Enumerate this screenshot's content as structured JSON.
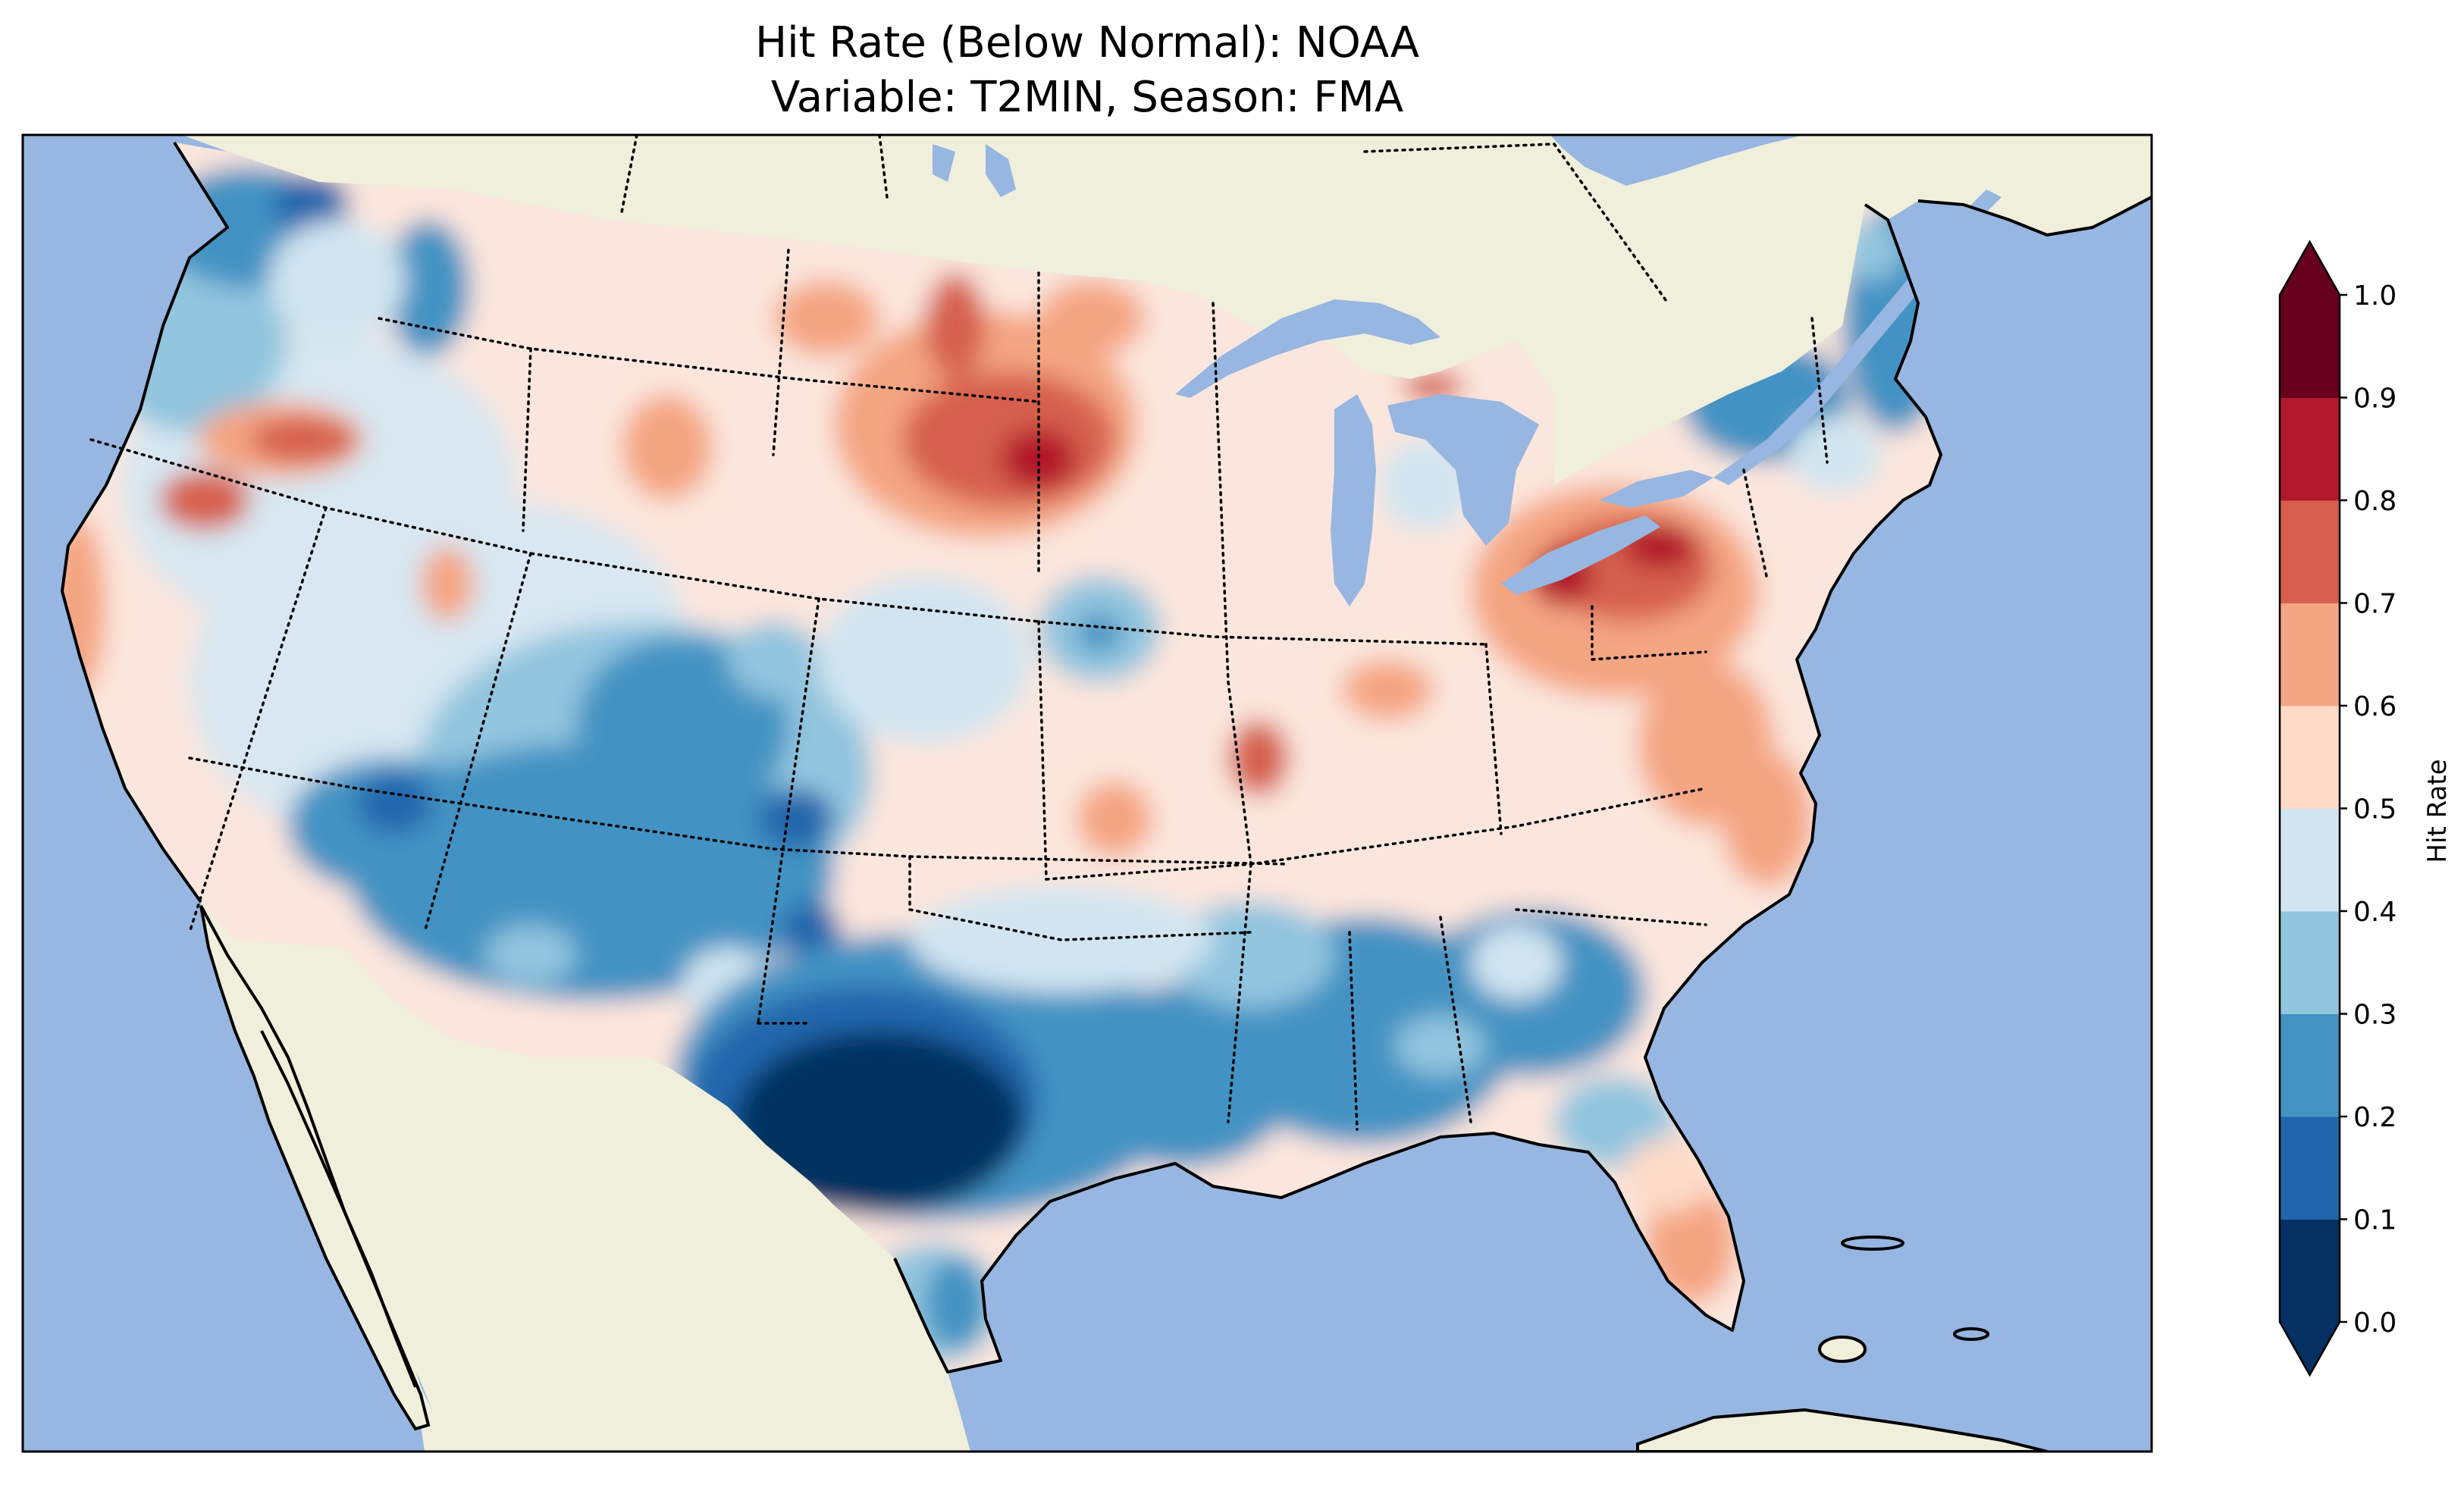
{
  "title": {
    "line1": "Hit Rate (Below Normal): NOAA",
    "line2": "Variable: T2MIN, Season: FMA"
  },
  "colors": {
    "ocean": "#97b6e1",
    "land": "#efefdb",
    "colormap": "RdBu_r",
    "bins": [
      "#053061",
      "#2166ac",
      "#4393c3",
      "#92c5de",
      "#d1e5f0",
      "#fddbc7",
      "#f4a582",
      "#d6604d",
      "#b2182b",
      "#67001f"
    ]
  },
  "colorbar": {
    "label": "Hit Rate",
    "ticks": [
      "0.0",
      "0.1",
      "0.2",
      "0.3",
      "0.4",
      "0.5",
      "0.6",
      "0.7",
      "0.8",
      "0.9",
      "1.0"
    ],
    "levels": [
      0.0,
      0.1,
      0.2,
      0.3,
      0.4,
      0.5,
      0.6,
      0.7,
      0.8,
      0.9,
      1.0
    ],
    "extend": "both"
  },
  "map_data": {
    "projection": "Lambert Conformal (CONUS)",
    "extent": {
      "lon": [
        -125,
        -66
      ],
      "lat": [
        24,
        50
      ]
    },
    "field_summary": [
      {
        "region": "Pacific Northwest coast",
        "hit_rate": 0.25
      },
      {
        "region": "Southern Texas",
        "hit_rate": 0.05
      },
      {
        "region": "Desert Southwest",
        "hit_rate": 0.25
      },
      {
        "region": "Northern Plains",
        "hit_rate": 0.75
      },
      {
        "region": "Lake Erie / Ohio",
        "hit_rate": 0.85
      },
      {
        "region": "Great Plains / Midwest",
        "hit_rate": 0.55
      },
      {
        "region": "Gulf Coast",
        "hit_rate": 0.25
      },
      {
        "region": "Northeast New England",
        "hit_rate": 0.25
      },
      {
        "region": "Florida peninsula",
        "hit_rate": 0.6
      }
    ]
  }
}
